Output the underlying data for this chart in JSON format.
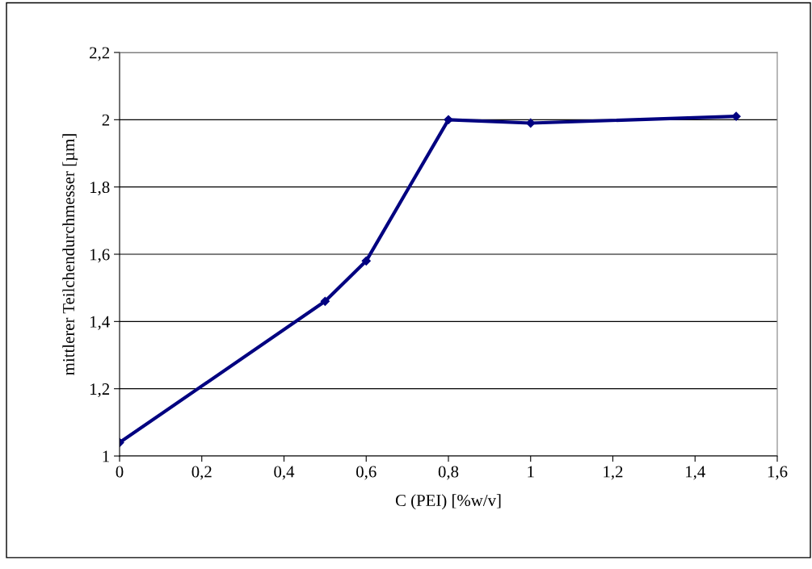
{
  "chart_data": {
    "type": "line",
    "xlabel": "C (PEI) [%w/v]",
    "ylabel": "mittlerer Teilchendurchmesser [µm]",
    "x": [
      0,
      0.5,
      0.6,
      0.8,
      1.0,
      1.5
    ],
    "series": [
      {
        "color": "#000080",
        "values": [
          1.04,
          1.46,
          1.58,
          2.0,
          1.99,
          2.01
        ]
      }
    ],
    "xlim": [
      0,
      1.6
    ],
    "ylim": [
      1,
      2.2
    ],
    "xticks": [
      0,
      {
        "value": 0.2,
        "label": "0,2"
      },
      {
        "value": 0.4,
        "label": "0,4"
      },
      {
        "value": 0.6,
        "label": "0,6"
      },
      {
        "value": 0.8,
        "label": "0,8"
      },
      1,
      {
        "value": 1.2,
        "label": "1,2"
      },
      {
        "value": 1.4,
        "label": "1,4"
      },
      {
        "value": 1.6,
        "label": "1,6"
      }
    ],
    "yticks": [
      1,
      {
        "value": 1.2,
        "label": "1,2"
      },
      {
        "value": 1.4,
        "label": "1,4"
      },
      {
        "value": 1.6,
        "label": "1,6"
      },
      {
        "value": 1.8,
        "label": "1,8"
      },
      2,
      {
        "value": 2.2,
        "label": "2,2"
      }
    ],
    "grid": "y",
    "marker": "diamond",
    "line_style": "solid",
    "legend": false
  }
}
